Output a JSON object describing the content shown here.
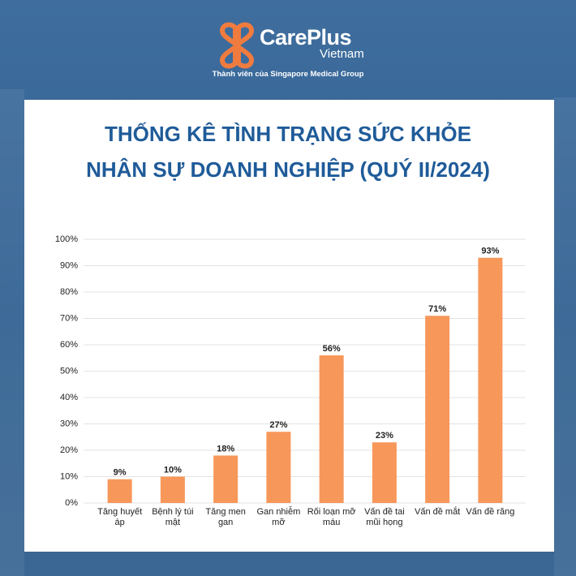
{
  "header": {
    "brand": "CarePlus",
    "brand_sub": "Vietnam",
    "tagline": "Thành viên của Singapore Medical Group"
  },
  "chart_data": {
    "type": "bar",
    "title": [
      "THỐNG KÊ TÌNH TRẠNG SỨC KHỎE",
      "NHÂN SỰ DOANH NGHIỆP (QUÝ II/2024)"
    ],
    "categories": [
      "Tăng huyết áp",
      "Bệnh lý túi mật",
      "Tăng men gan",
      "Gan nhiễm mỡ",
      "Rối loạn mỡ máu",
      "Vấn đề tai mũi họng",
      "Vấn đề mắt",
      "Vấn đề răng"
    ],
    "values": [
      9,
      10,
      18,
      27,
      56,
      23,
      71,
      93
    ],
    "value_labels": [
      "9%",
      "10%",
      "18%",
      "27%",
      "56%",
      "23%",
      "71%",
      "93%"
    ],
    "color": "#f7975a",
    "ylim": [
      0,
      100
    ],
    "yticks": [
      {
        "value": 0,
        "label": "0%"
      },
      {
        "value": 10,
        "label": "10%"
      },
      {
        "value": 20,
        "label": "20%"
      },
      {
        "value": 30,
        "label": "30%"
      },
      {
        "value": 40,
        "label": "40%"
      },
      {
        "value": 50,
        "label": "50%"
      },
      {
        "value": 60,
        "label": "60%"
      },
      {
        "value": 70,
        "label": "70%"
      },
      {
        "value": 80,
        "label": "80%"
      },
      {
        "value": 90,
        "label": "90%"
      },
      {
        "value": 100,
        "label": "100%"
      }
    ],
    "grid": true
  }
}
